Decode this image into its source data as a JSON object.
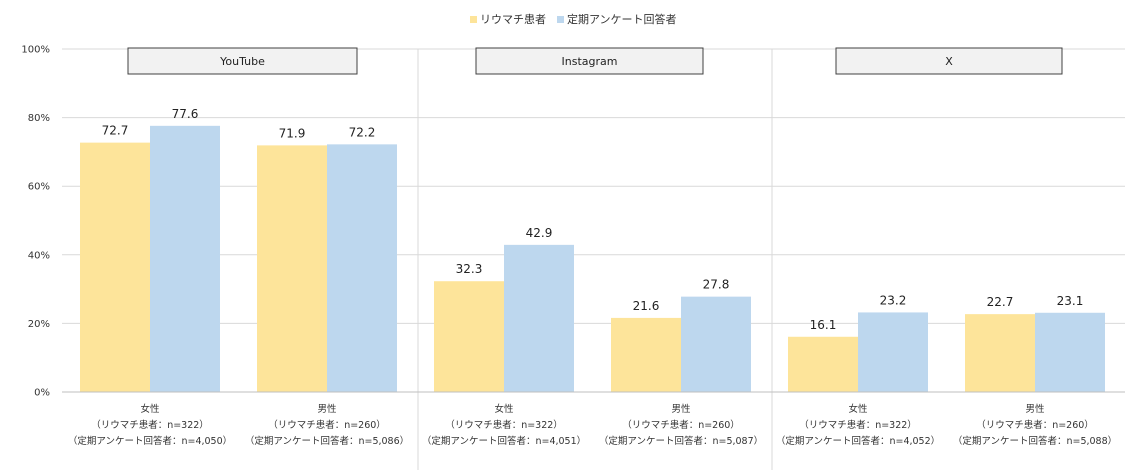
{
  "chart_data": {
    "type": "bar",
    "ylim": [
      0,
      100
    ],
    "yticks": [
      "0%",
      "20%",
      "40%",
      "60%",
      "80%",
      "100%"
    ],
    "ytick_values": [
      0,
      20,
      40,
      60,
      80,
      100
    ],
    "grid": true,
    "legend_position": "top-center",
    "colors": {
      "rheuma": "#fde49a",
      "survey": "#bdd7ee",
      "panel_box": "#f2f2f2",
      "grid": "#d9d9d9"
    },
    "series": [
      {
        "name": "リウマチ患者"
      },
      {
        "name": "定期アンケート回答者"
      }
    ],
    "panels": [
      {
        "title": "YouTube",
        "groups": [
          {
            "label_lines": [
              "女性",
              "（リウマチ患者：n=322）",
              "（定期アンケート回答者：n=4,050）"
            ],
            "values": [
              72.7,
              77.6
            ],
            "labels": [
              "72.7",
              "77.6"
            ]
          },
          {
            "label_lines": [
              "男性",
              "（リウマチ患者：n=260）",
              "（定期アンケート回答者：n=5,086）"
            ],
            "values": [
              71.9,
              72.2
            ],
            "labels": [
              "71.9",
              "72.2"
            ]
          }
        ]
      },
      {
        "title": "Instagram",
        "groups": [
          {
            "label_lines": [
              "女性",
              "（リウマチ患者：n=322）",
              "（定期アンケート回答者：n=4,051）"
            ],
            "values": [
              32.3,
              42.9
            ],
            "labels": [
              "32.3",
              "42.9"
            ]
          },
          {
            "label_lines": [
              "男性",
              "（リウマチ患者：n=260）",
              "（定期アンケート回答者：n=5,087）"
            ],
            "values": [
              21.6,
              27.8
            ],
            "labels": [
              "21.6",
              "27.8"
            ]
          }
        ]
      },
      {
        "title": "X",
        "groups": [
          {
            "label_lines": [
              "女性",
              "（リウマチ患者：n=322）",
              "（定期アンケート回答者：n=4,052）"
            ],
            "values": [
              16.1,
              23.2
            ],
            "labels": [
              "16.1",
              "23.2"
            ]
          },
          {
            "label_lines": [
              "男性",
              "（リウマチ患者：n=260）",
              "（定期アンケート回答者：n=5,088）"
            ],
            "values": [
              22.7,
              23.1
            ],
            "labels": [
              "22.7",
              "23.1"
            ]
          }
        ]
      }
    ]
  }
}
